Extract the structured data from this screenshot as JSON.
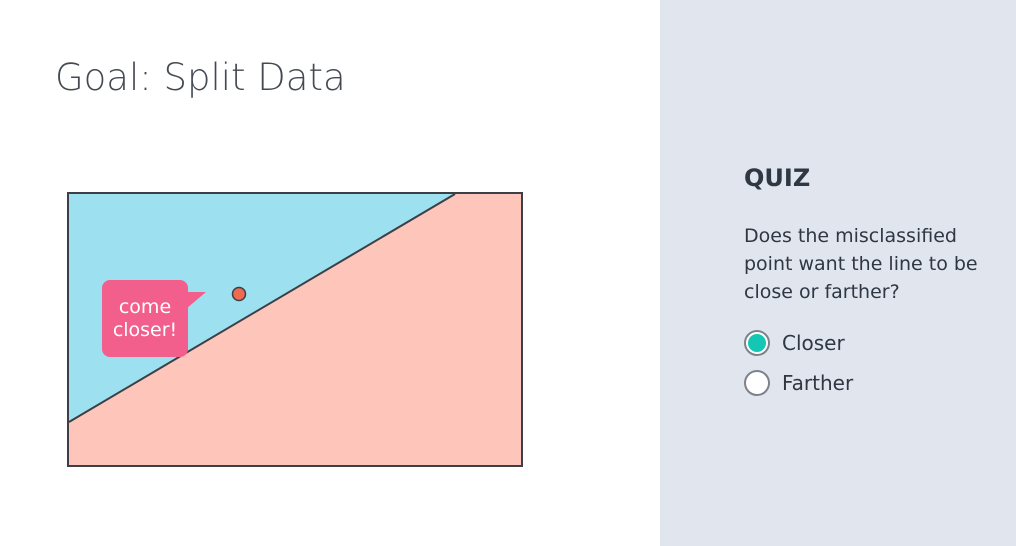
{
  "slide": {
    "title": "Goal: Split Data",
    "bubble_text": "come\ncloser!"
  },
  "figure": {
    "region_colors": {
      "upper": "#9de0f0",
      "lower": "#fec5bb",
      "border": "#3c3f45",
      "point": "#ee6a52",
      "bubble": "#f25f8d"
    }
  },
  "quiz": {
    "title": "QUIZ",
    "question": "Does the misclassified point want the line to be close or farther?",
    "options": [
      {
        "label": "Closer",
        "selected": true
      },
      {
        "label": "Farther",
        "selected": false
      }
    ],
    "accent_color": "#14c7b4"
  }
}
